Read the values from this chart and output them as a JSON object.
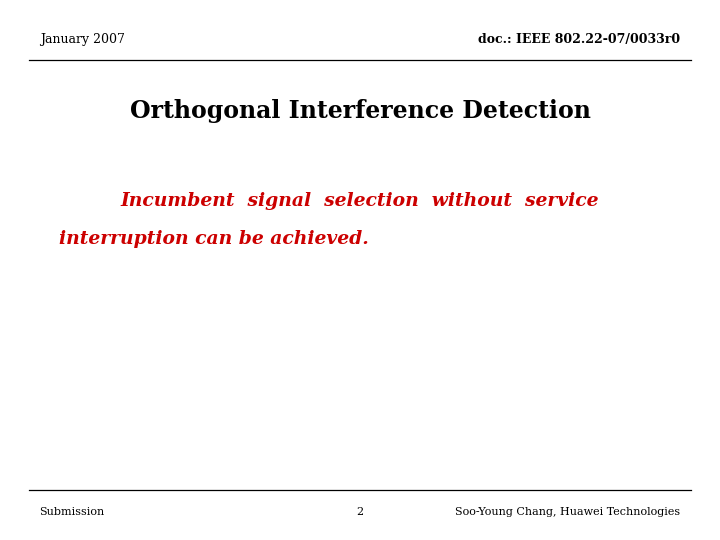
{
  "background_color": "#ffffff",
  "header_left": "January 2007",
  "header_right": "doc.: IEEE 802.22-07/0033r0",
  "title": "Orthogonal Interference Detection",
  "body_text_line1": "Incumbent  signal  selection  without  service",
  "body_text_line2": "interruption can be achieved.",
  "footer_left": "Submission",
  "footer_center": "2",
  "footer_right": "Soo-Young Chang, Huawei Technologies",
  "header_fontsize": 9,
  "title_fontsize": 17,
  "body_fontsize": 13.5,
  "footer_fontsize": 8,
  "header_color": "#000000",
  "title_color": "#000000",
  "body_color": "#cc0000",
  "footer_color": "#000000",
  "line_color": "#000000"
}
